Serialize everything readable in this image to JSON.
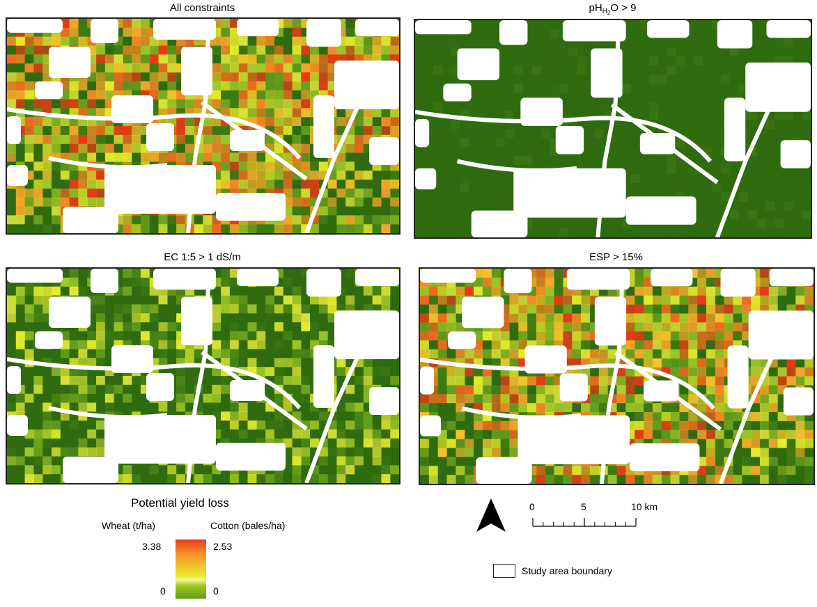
{
  "panels": [
    {
      "id": "all",
      "title_main": "All constraints",
      "title_sub": "",
      "title_sub2": "",
      "title_tail": "",
      "style": "mixed"
    },
    {
      "id": "ph",
      "title_main": "pH",
      "title_sub": "H",
      "title_sub2": "2",
      "title_tail": "O > 9",
      "style": "green"
    },
    {
      "id": "ec",
      "title_main": "EC 1:5 > 1 dS/m",
      "title_sub": "",
      "title_sub2": "",
      "title_tail": "",
      "style": "mostlygreen"
    },
    {
      "id": "esp",
      "title_main": "ESP > 15%",
      "title_sub": "",
      "title_sub2": "",
      "title_tail": "",
      "style": "mixed"
    }
  ],
  "legend": {
    "title": "Potential yield loss",
    "wheat_label": "Wheat (t/ha)",
    "cotton_label": "Cotton (bales/ha)",
    "wheat_max": "3.38",
    "wheat_min": "0",
    "cotton_max": "2.53",
    "cotton_min": "0",
    "colors": {
      "high": "#ea3a17",
      "mid": "#f4c32a",
      "low": "#5e9d1b",
      "dark_green": "#2f6b0f"
    }
  },
  "scalebar": {
    "ticks": [
      "0",
      "5",
      "10 km"
    ]
  },
  "north_arrow_icon": "north-arrow-icon",
  "boundary_label": "Study area boundary"
}
